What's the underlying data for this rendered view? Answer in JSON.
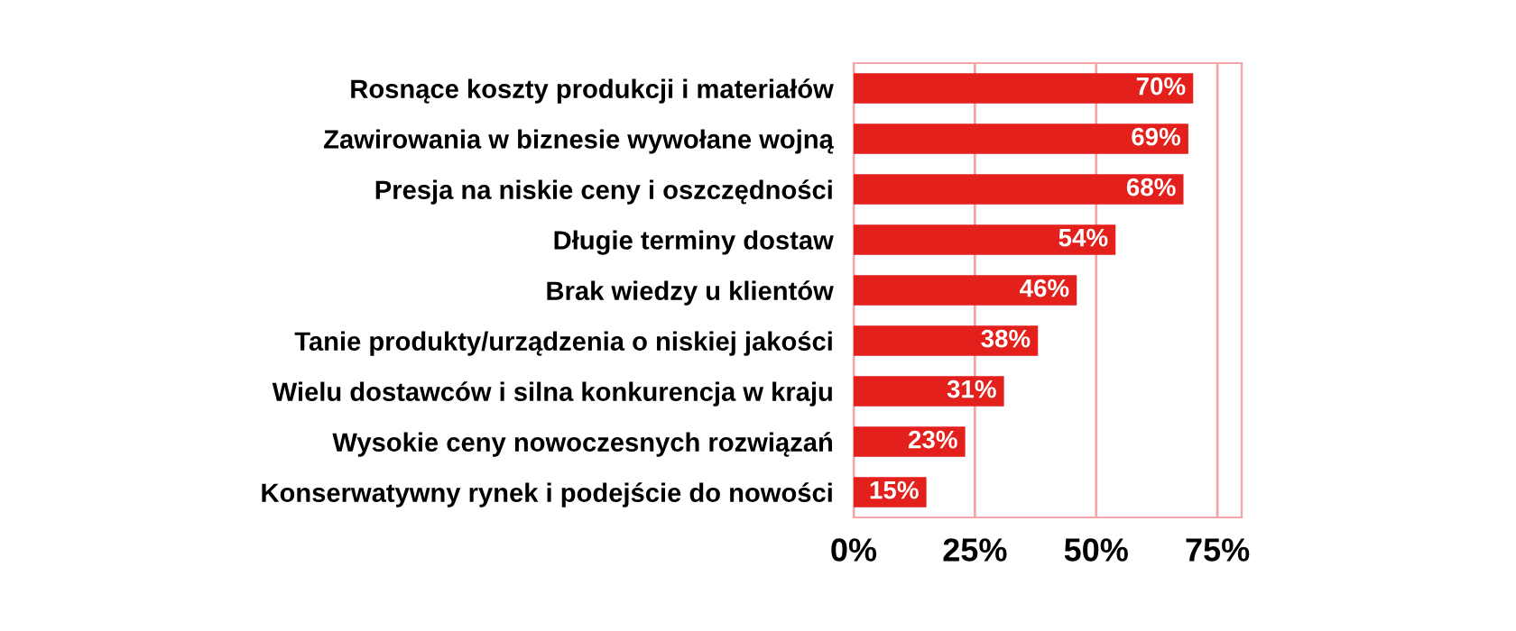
{
  "chart_data": {
    "type": "bar",
    "orientation": "horizontal",
    "categories": [
      "Rosnące koszty produkcji i materiałów",
      "Zawirowania w biznesie wywołane wojną",
      "Presja na niskie ceny i oszczędności",
      "Długie terminy dostaw",
      "Brak wiedzy u klientów",
      "Tanie produkty/urządzenia o niskiej jakości",
      "Wielu dostawców i silna konkurencja w kraju",
      "Wysokie ceny nowoczesnych rozwiązań",
      "Konserwatywny rynek i podejście do nowości"
    ],
    "values": [
      70,
      69,
      68,
      54,
      46,
      38,
      31,
      23,
      15
    ],
    "value_labels": [
      "70%",
      "69%",
      "68%",
      "54%",
      "46%",
      "38%",
      "31%",
      "23%",
      "15%"
    ],
    "color": "#e3201b",
    "xlim": [
      0,
      80
    ],
    "xticks": [
      {
        "value": 0,
        "label": "0%"
      },
      {
        "value": 25,
        "label": "25%"
      },
      {
        "value": 50,
        "label": "50%"
      },
      {
        "value": 75,
        "label": "75%"
      }
    ],
    "grid": "x"
  }
}
